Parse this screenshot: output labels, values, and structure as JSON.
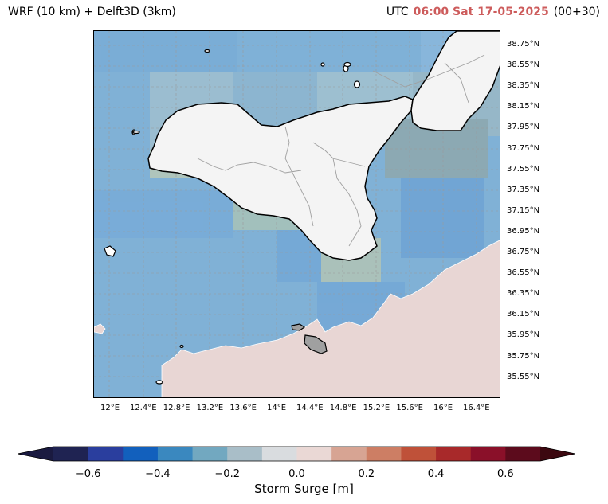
{
  "header": {
    "title_left": "WRF (10 km) + Delft3D (3km)",
    "utc_label": "UTC",
    "datetime": "06:00 Sat 17-05-2025",
    "lead": "(00+30)",
    "accent_color": "#cd5c5c"
  },
  "map": {
    "lat_labels": [
      "38.75°N",
      "38.55°N",
      "38.35°N",
      "38.15°N",
      "37.95°N",
      "37.75°N",
      "37.55°N",
      "37.35°N",
      "37.15°N",
      "36.95°N",
      "36.75°N",
      "36.55°N",
      "36.35°N",
      "36.15°N",
      "35.95°N",
      "35.75°N",
      "35.55°N"
    ],
    "lon_labels": [
      "12°E",
      "12.4°E",
      "12.8°E",
      "13.2°E",
      "13.6°E",
      "14°E",
      "14.4°E",
      "14.8°E",
      "15.2°E",
      "15.6°E",
      "16°E",
      "16.4°E"
    ],
    "sea_color": "#7fb0d6",
    "land_color": "#f4f4f4",
    "positive_surge_color": "#e8d6d4"
  },
  "colorbar": {
    "ticks": [
      "−0.6",
      "−0.4",
      "−0.2",
      "0.0",
      "0.2",
      "0.4",
      "0.6"
    ],
    "label": "Storm Surge [m]",
    "colors": [
      "#1f2352",
      "#2a3e9e",
      "#1260bd",
      "#3a88bf",
      "#72a8c0",
      "#a9bec8",
      "#d9dcdf",
      "#ead8d5",
      "#d7a493",
      "#cd7e64",
      "#bf5139",
      "#a8292a",
      "#8a1029",
      "#5c0b1c"
    ]
  }
}
